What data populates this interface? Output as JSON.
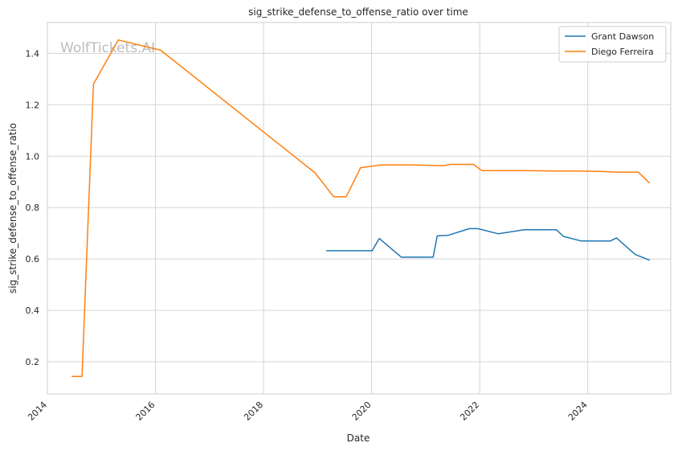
{
  "watermark": "WolfTickets.AI",
  "chart_data": {
    "type": "line",
    "title": "sig_strike_defense_to_offense_ratio over time",
    "xlabel": "Date",
    "ylabel": "sig_strike_defense_to_offense_ratio",
    "x_ticks": [
      "2014",
      "2016",
      "2018",
      "2020",
      "2022",
      "2024"
    ],
    "y_ticks": [
      "0.2",
      "0.4",
      "0.6",
      "0.8",
      "1.0",
      "1.2",
      "1.4"
    ],
    "xlim": [
      "2014-01-01",
      "2025-07-15"
    ],
    "ylim": [
      0.075,
      1.52
    ],
    "grid": true,
    "legend_position": "top-right",
    "series": [
      {
        "name": "Grant Dawson",
        "color": "#1f77b4",
        "points": [
          [
            "2019-03-01",
            0.632
          ],
          [
            "2019-06-01",
            0.632
          ],
          [
            "2019-10-01",
            0.632
          ],
          [
            "2020-01-05",
            0.632
          ],
          [
            "2020-02-22",
            0.68
          ],
          [
            "2020-07-20",
            0.607
          ],
          [
            "2021-02-20",
            0.607
          ],
          [
            "2021-03-20",
            0.69
          ],
          [
            "2021-06-01",
            0.692
          ],
          [
            "2021-10-23",
            0.718
          ],
          [
            "2021-12-18",
            0.718
          ],
          [
            "2022-05-07",
            0.698
          ],
          [
            "2022-10-29",
            0.714
          ],
          [
            "2023-06-03",
            0.714
          ],
          [
            "2023-07-20",
            0.688
          ],
          [
            "2023-11-19",
            0.67
          ],
          [
            "2024-06-01",
            0.67
          ],
          [
            "2024-07-13",
            0.682
          ],
          [
            "2024-11-16",
            0.618
          ],
          [
            "2025-02-22",
            0.595
          ]
        ]
      },
      {
        "name": "Diego Ferreira",
        "color": "#ff7f0e",
        "points": [
          [
            "2014-06-14",
            0.143
          ],
          [
            "2014-08-23",
            0.143
          ],
          [
            "2014-11-08",
            1.28
          ],
          [
            "2015-04-25",
            1.452
          ],
          [
            "2016-02-06",
            1.412
          ],
          [
            "2018-12-15",
            0.935
          ],
          [
            "2019-04-20",
            0.842
          ],
          [
            "2019-07-13",
            0.842
          ],
          [
            "2019-10-19",
            0.955
          ],
          [
            "2020-03-07",
            0.966
          ],
          [
            "2020-09-26",
            0.966
          ],
          [
            "2021-04-24",
            0.963
          ],
          [
            "2021-06-19",
            0.968
          ],
          [
            "2021-11-20",
            0.968
          ],
          [
            "2022-01-15",
            0.944
          ],
          [
            "2022-11-20",
            0.944
          ],
          [
            "2023-06-03",
            0.942
          ],
          [
            "2023-11-19",
            0.942
          ],
          [
            "2024-04-13",
            0.94
          ],
          [
            "2024-07-20",
            0.938
          ],
          [
            "2024-12-07",
            0.938
          ],
          [
            "2025-02-22",
            0.895
          ]
        ]
      }
    ]
  }
}
